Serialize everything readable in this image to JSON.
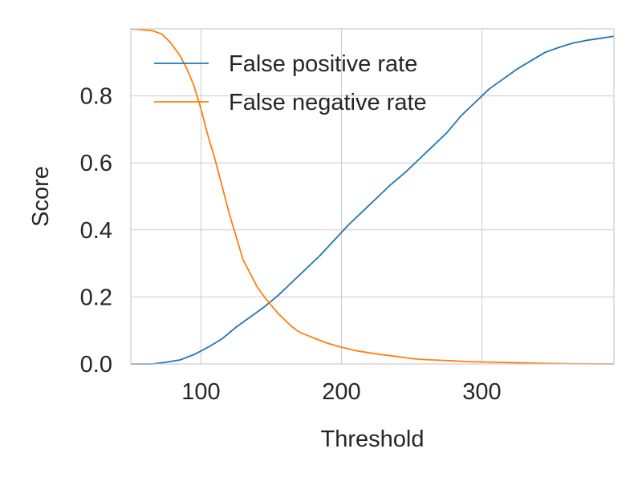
{
  "chart_data": {
    "type": "line",
    "xlabel": "Threshold",
    "ylabel": "Score",
    "xlim": [
      50,
      394
    ],
    "ylim": [
      0,
      1
    ],
    "xticks": [
      100,
      200,
      300
    ],
    "xtick_labels": [
      "100",
      "200",
      "300"
    ],
    "yticks": [
      0.0,
      0.2,
      0.4,
      0.6,
      0.8
    ],
    "ytick_labels": [
      "0.0",
      "0.2",
      "0.4",
      "0.6",
      "0.8"
    ],
    "grid": true,
    "legend": "top-left",
    "series": [
      {
        "name": "False positive rate",
        "color": "#1f77b4",
        "points": [
          [
            50,
            0.0
          ],
          [
            65,
            0.0
          ],
          [
            75,
            0.005
          ],
          [
            85,
            0.012
          ],
          [
            95,
            0.028
          ],
          [
            105,
            0.05
          ],
          [
            115,
            0.075
          ],
          [
            125,
            0.11
          ],
          [
            135,
            0.14
          ],
          [
            145,
            0.17
          ],
          [
            155,
            0.205
          ],
          [
            165,
            0.245
          ],
          [
            175,
            0.285
          ],
          [
            185,
            0.325
          ],
          [
            195,
            0.37
          ],
          [
            205,
            0.415
          ],
          [
            215,
            0.455
          ],
          [
            225,
            0.495
          ],
          [
            235,
            0.535
          ],
          [
            245,
            0.57
          ],
          [
            255,
            0.61
          ],
          [
            265,
            0.65
          ],
          [
            275,
            0.69
          ],
          [
            285,
            0.74
          ],
          [
            295,
            0.78
          ],
          [
            305,
            0.82
          ],
          [
            315,
            0.85
          ],
          [
            325,
            0.88
          ],
          [
            335,
            0.905
          ],
          [
            345,
            0.93
          ],
          [
            355,
            0.945
          ],
          [
            365,
            0.958
          ],
          [
            375,
            0.966
          ],
          [
            385,
            0.972
          ],
          [
            394,
            0.978
          ]
        ]
      },
      {
        "name": "False negative rate",
        "color": "#ff7f0e",
        "points": [
          [
            50,
            1.0
          ],
          [
            65,
            0.995
          ],
          [
            72,
            0.985
          ],
          [
            78,
            0.96
          ],
          [
            85,
            0.92
          ],
          [
            90,
            0.88
          ],
          [
            95,
            0.83
          ],
          [
            100,
            0.76
          ],
          [
            105,
            0.68
          ],
          [
            110,
            0.61
          ],
          [
            115,
            0.53
          ],
          [
            120,
            0.45
          ],
          [
            125,
            0.38
          ],
          [
            130,
            0.31
          ],
          [
            135,
            0.27
          ],
          [
            140,
            0.23
          ],
          [
            145,
            0.2
          ],
          [
            150,
            0.175
          ],
          [
            155,
            0.15
          ],
          [
            160,
            0.13
          ],
          [
            165,
            0.11
          ],
          [
            170,
            0.095
          ],
          [
            180,
            0.078
          ],
          [
            190,
            0.062
          ],
          [
            200,
            0.05
          ],
          [
            210,
            0.04
          ],
          [
            220,
            0.033
          ],
          [
            230,
            0.027
          ],
          [
            240,
            0.022
          ],
          [
            250,
            0.016
          ],
          [
            260,
            0.013
          ],
          [
            270,
            0.011
          ],
          [
            280,
            0.009
          ],
          [
            290,
            0.007
          ],
          [
            300,
            0.006
          ],
          [
            310,
            0.005
          ],
          [
            320,
            0.004
          ],
          [
            330,
            0.003
          ],
          [
            340,
            0.002
          ],
          [
            360,
            0.001
          ],
          [
            394,
            0.0
          ]
        ]
      }
    ]
  }
}
